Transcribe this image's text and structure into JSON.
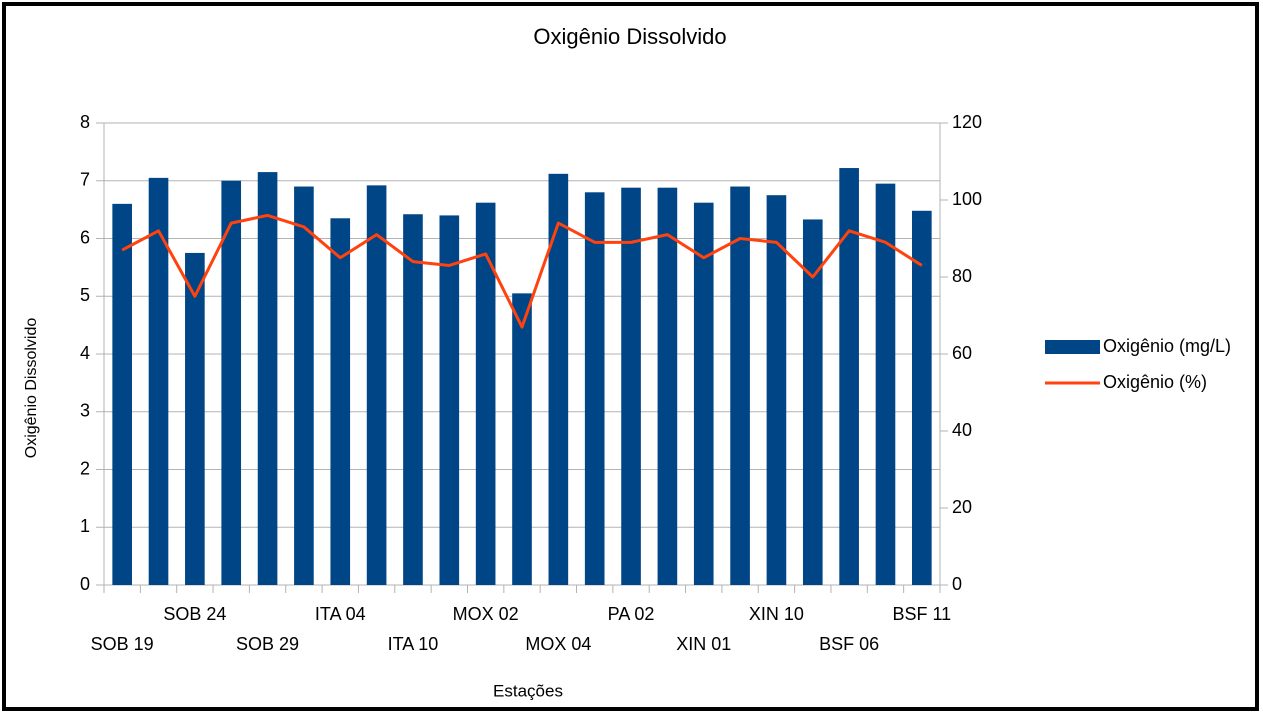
{
  "chart_data": {
    "type": "bar_line",
    "title": "Oxigênio Dissolvido",
    "xlabel": "Estações",
    "ylabel": "Oxigênio Dissolvido",
    "categories": [
      "SOB 19",
      null,
      "SOB 24",
      null,
      "SOB 29",
      null,
      "ITA 04",
      null,
      "ITA 10",
      null,
      "MOX 02",
      null,
      "MOX 04",
      null,
      "PA 02",
      null,
      "XIN 01",
      null,
      "XIN 10",
      null,
      "BSF 06",
      null,
      "BSF 11"
    ],
    "series": [
      {
        "name": "Oxigênio (mg/L)",
        "color": "#004586",
        "type": "bar",
        "values": [
          6.6,
          7.05,
          5.75,
          7.0,
          7.15,
          6.9,
          6.35,
          6.92,
          6.42,
          6.4,
          6.62,
          5.05,
          7.12,
          6.8,
          6.88,
          6.88,
          6.62,
          6.9,
          6.75,
          6.33,
          7.22,
          6.95,
          6.48
        ]
      },
      {
        "name": "Oxigênio (%)",
        "color": "#ff420e",
        "type": "line",
        "axis": "y2",
        "values": [
          87,
          92,
          75,
          94,
          96,
          93,
          85,
          91,
          84,
          83,
          86,
          67,
          94,
          89,
          89,
          91,
          85,
          90,
          89,
          80,
          92,
          89,
          83
        ]
      }
    ],
    "ylim": [
      0,
      8
    ],
    "yticks": [
      0,
      1,
      2,
      3,
      4,
      5,
      6,
      7,
      8
    ],
    "y2lim": [
      0,
      120
    ],
    "y2ticks": [
      0,
      20,
      40,
      60,
      80,
      100,
      120
    ],
    "grid": true,
    "legend": "right"
  }
}
